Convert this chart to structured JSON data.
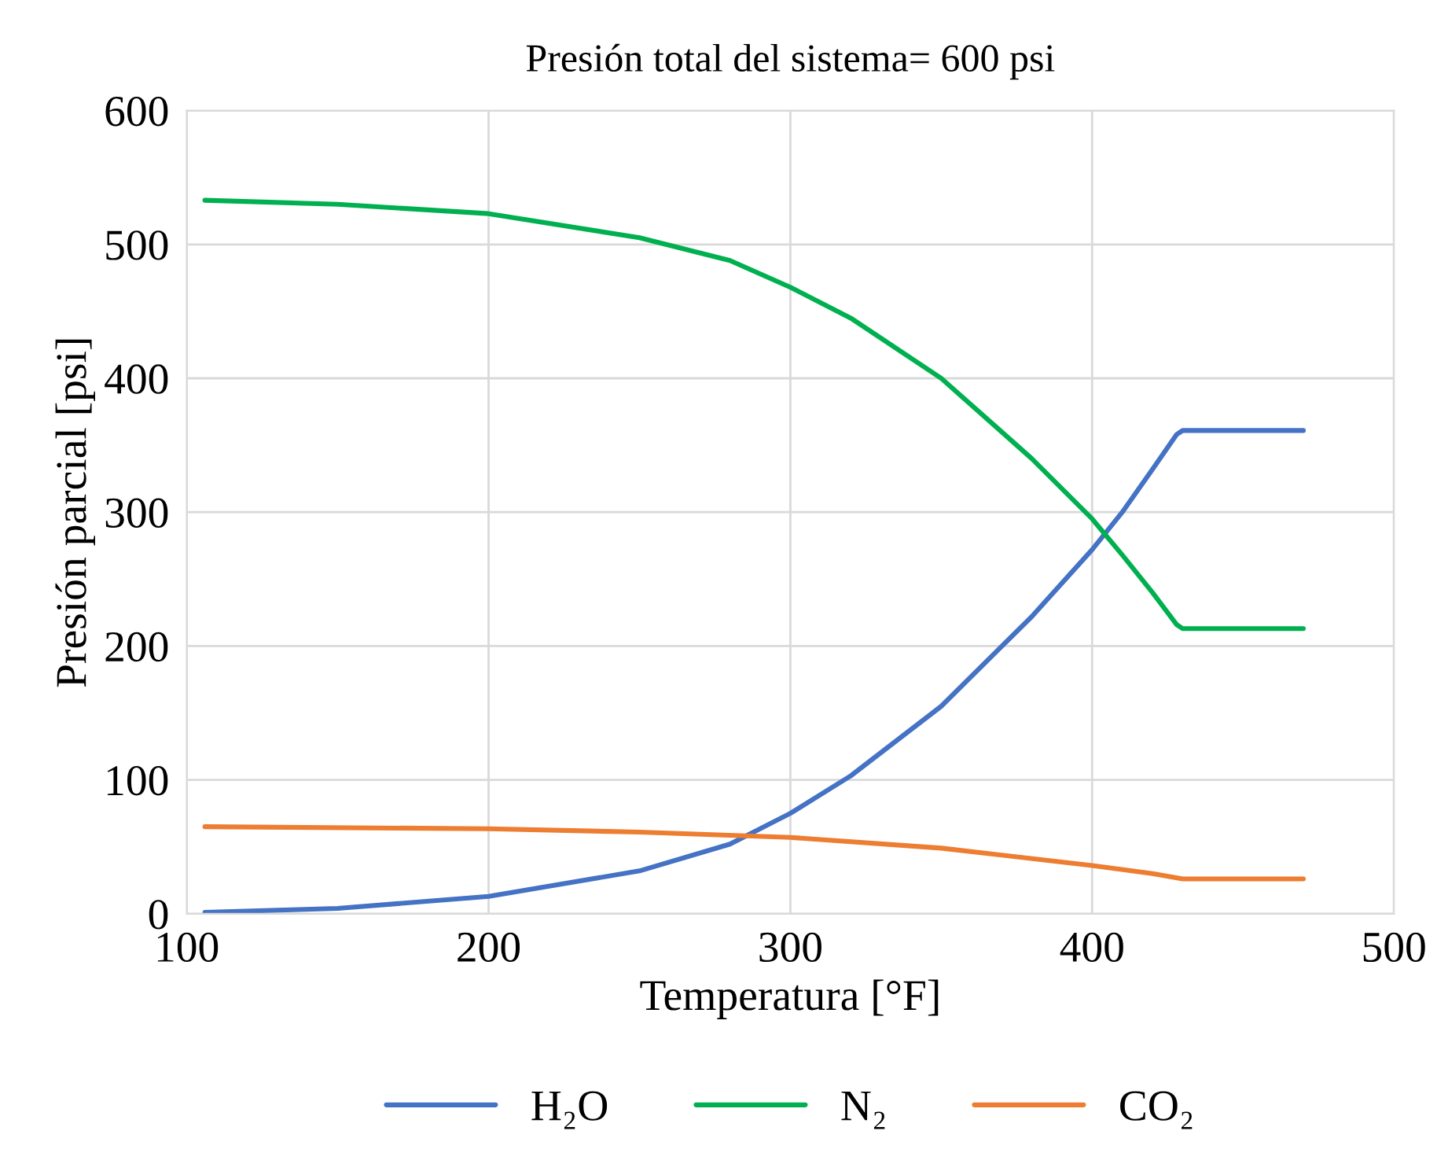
{
  "chart_data": {
    "type": "line",
    "title": "Presión total del sistema= 600 psi",
    "xlabel": "Temperatura [°F]",
    "ylabel": "Presión parcial [psi]",
    "xlim": [
      100,
      500
    ],
    "xticks": [
      100,
      200,
      300,
      400,
      500
    ],
    "ylim": [
      0,
      600
    ],
    "yticks": [
      0,
      100,
      200,
      300,
      400,
      500,
      600
    ],
    "grid": true,
    "legend": "bottom",
    "marker": "none",
    "line_style": "solid",
    "series": [
      {
        "name": "H₂O",
        "color": "#4472c4",
        "x": [
          106,
          150,
          200,
          250,
          280,
          300,
          320,
          350,
          380,
          400,
          410,
          420,
          428,
          430,
          470
        ],
        "values": [
          1,
          4,
          13,
          32,
          52,
          75,
          103,
          155,
          222,
          272,
          300,
          332,
          358,
          361,
          361
        ]
      },
      {
        "name": "N₂",
        "color": "#00b050",
        "x": [
          106,
          150,
          200,
          250,
          280,
          300,
          320,
          350,
          380,
          400,
          410,
          420,
          428,
          430,
          470
        ],
        "values": [
          533,
          530,
          523,
          505,
          488,
          468,
          445,
          400,
          340,
          295,
          268,
          240,
          216,
          213,
          213
        ]
      },
      {
        "name": "CO₂",
        "color": "#ed7d31",
        "x": [
          106,
          200,
          250,
          300,
          350,
          400,
          420,
          430,
          470
        ],
        "values": [
          65,
          63.5,
          61,
          57,
          49,
          36,
          30,
          26,
          26
        ]
      }
    ]
  }
}
